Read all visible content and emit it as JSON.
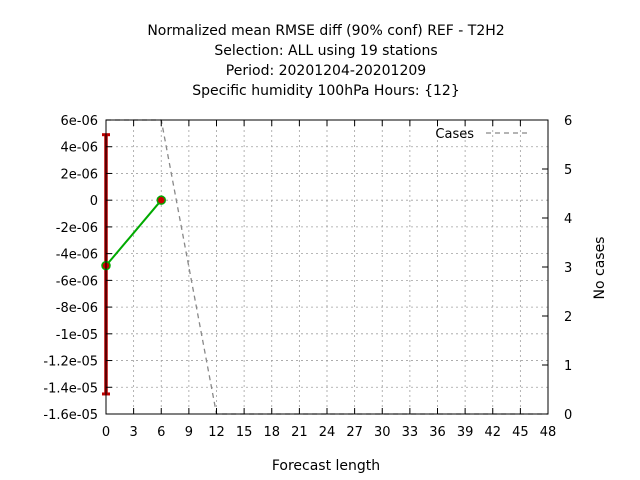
{
  "chart_data": {
    "type": "line",
    "title_lines": [
      "Normalized mean RMSE diff (90% conf) REF - T2H2",
      "Selection: ALL using    19 stations",
      "Period: 20201204-20201209",
      "Specific humidity 100hPa   Hours: {12}"
    ],
    "xlabel": "Forecast length",
    "ylabel": "",
    "y2label": "No cases",
    "xlim": [
      0,
      48
    ],
    "ylim": [
      -1.6e-05,
      6e-06
    ],
    "y2lim": [
      0,
      6
    ],
    "x_ticks": [
      0,
      3,
      6,
      9,
      12,
      15,
      18,
      21,
      24,
      27,
      30,
      33,
      36,
      39,
      42,
      45,
      48
    ],
    "y_ticks": [
      {
        "value": 6e-06,
        "label": "6e-06"
      },
      {
        "value": 4e-06,
        "label": "4e-06"
      },
      {
        "value": 2e-06,
        "label": "2e-06"
      },
      {
        "value": 0,
        "label": "0"
      },
      {
        "value": -2e-06,
        "label": "-2e-06"
      },
      {
        "value": -4e-06,
        "label": "-4e-06"
      },
      {
        "value": -6e-06,
        "label": "-6e-06"
      },
      {
        "value": -8e-06,
        "label": "-8e-06"
      },
      {
        "value": -1e-05,
        "label": "-1e-05"
      },
      {
        "value": -1.2e-05,
        "label": "-1.2e-05"
      },
      {
        "value": -1.4e-05,
        "label": "-1.4e-05"
      },
      {
        "value": -1.6e-05,
        "label": "-1.6e-05"
      }
    ],
    "y2_ticks": [
      0,
      1,
      2,
      3,
      4,
      5,
      6
    ],
    "grid": true,
    "legend_position": "top-right",
    "series": [
      {
        "role": "diff",
        "color": "#00aa00",
        "marker_color": "#cc0000",
        "x": [
          0,
          6
        ],
        "y": [
          -4.9e-06,
          0
        ]
      },
      {
        "role": "confidence",
        "color": "#bb0000",
        "intervals": [
          {
            "x": 0,
            "low": -1.45e-05,
            "high": 4.9e-06
          },
          {
            "x": 6,
            "low": -1e-07,
            "high": 1e-07
          }
        ]
      },
      {
        "name": "Cases",
        "axis": "y2",
        "color": "#888888",
        "dash": "dashed",
        "x": [
          0,
          3,
          6,
          9,
          12,
          15,
          18,
          21,
          24,
          27,
          30,
          33,
          36,
          39,
          42,
          45,
          48
        ],
        "y": [
          6,
          6,
          6,
          3,
          0,
          0,
          0,
          0,
          0,
          0,
          0,
          0,
          0,
          0,
          0,
          0,
          0
        ]
      }
    ]
  }
}
